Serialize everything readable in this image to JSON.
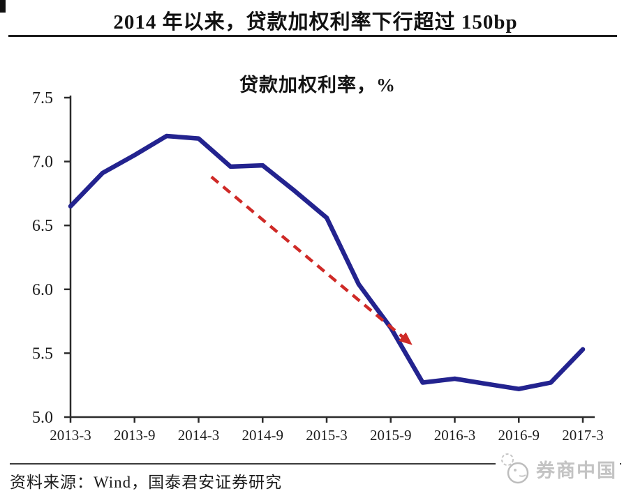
{
  "header": {
    "title": "2014 年以来，贷款加权利率下行超过 150bp"
  },
  "footer": {
    "source": "资料来源：Wind，国泰君安证券研究",
    "watermark": "券商中国"
  },
  "chart_data": {
    "type": "line",
    "title": "贷款加权利率，%",
    "x": [
      "2013-3",
      "2013-6",
      "2013-9",
      "2013-12",
      "2014-3",
      "2014-6",
      "2014-9",
      "2014-12",
      "2015-3",
      "2015-6",
      "2015-9",
      "2015-12",
      "2016-3",
      "2016-6",
      "2016-9",
      "2016-12",
      "2017-3"
    ],
    "x_tick_labels": [
      "2013-3",
      "2013-9",
      "2014-3",
      "2014-9",
      "2015-3",
      "2015-9",
      "2016-3",
      "2016-9",
      "2017-3"
    ],
    "series": [
      {
        "name": "贷款加权利率",
        "color": "#23238f",
        "values": [
          6.65,
          6.91,
          7.05,
          7.2,
          7.18,
          6.96,
          6.97,
          6.77,
          6.56,
          6.04,
          5.7,
          5.27,
          5.3,
          5.26,
          5.22,
          5.27,
          5.53
        ]
      }
    ],
    "ylim": [
      5.0,
      7.5
    ],
    "y_ticks": [
      5.0,
      5.5,
      6.0,
      6.5,
      7.0,
      7.5
    ],
    "grid": false,
    "legend": "none",
    "axis_color": "#2b2b2b",
    "trend_arrow": {
      "color": "#cf2a27",
      "style": "dashed",
      "from": {
        "x_index": 4.4,
        "value": 6.88
      },
      "to": {
        "x_index": 10.6,
        "value": 5.58
      }
    }
  }
}
